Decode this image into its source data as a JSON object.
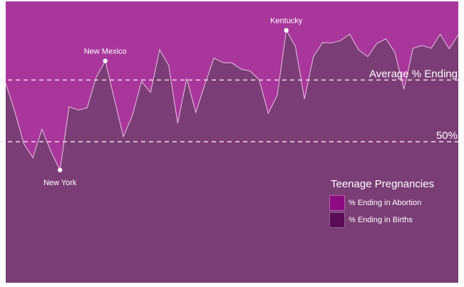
{
  "chart_data": {
    "type": "area",
    "title": "",
    "xlabel": "",
    "ylabel": "",
    "ylim": [
      0,
      1
    ],
    "grid": false,
    "legend_position": "bottom-right",
    "legend": {
      "title": "Teenage Pregnancies",
      "entries": [
        "% Ending in Abortion",
        "% Ending in Births"
      ]
    },
    "series": [
      {
        "name": "% Ending in Abortion",
        "color": "#a8369b",
        "values": [
          0.708,
          0.608,
          0.493,
          0.443,
          0.545,
          0.465,
          0.399,
          0.625,
          0.613,
          0.621,
          0.73,
          0.788,
          0.652,
          0.518,
          0.594,
          0.715,
          0.676,
          0.828,
          0.772,
          0.566,
          0.726,
          0.604,
          0.704,
          0.798,
          0.782,
          0.781,
          0.759,
          0.752,
          0.721,
          0.601,
          0.666,
          0.897,
          0.84,
          0.652,
          0.804,
          0.853,
          0.852,
          0.861,
          0.883,
          0.827,
          0.803,
          0.85,
          0.867,
          0.818,
          0.687,
          0.833,
          0.843,
          0.833,
          0.883,
          0.831,
          0.882
        ]
      },
      {
        "name": "% Ending in Births",
        "color": "#7b3d75",
        "values": [
          0.292,
          0.392,
          0.507,
          0.557,
          0.455,
          0.535,
          0.601,
          0.375,
          0.387,
          0.379,
          0.27,
          0.212,
          0.348,
          0.482,
          0.406,
          0.285,
          0.324,
          0.172,
          0.228,
          0.434,
          0.274,
          0.396,
          0.296,
          0.202,
          0.218,
          0.219,
          0.241,
          0.248,
          0.279,
          0.399,
          0.334,
          0.103,
          0.16,
          0.348,
          0.196,
          0.147,
          0.148,
          0.139,
          0.117,
          0.173,
          0.197,
          0.15,
          0.133,
          0.182,
          0.313,
          0.167,
          0.157,
          0.167,
          0.117,
          0.169,
          0.118
        ]
      }
    ],
    "reference_lines": [
      {
        "label": "Average % Ending",
        "value": 0.72
      },
      {
        "label": "50%",
        "value": 0.5
      }
    ],
    "annotations": [
      {
        "label": "New York",
        "index": 6
      },
      {
        "label": "New Mexico",
        "index": 11
      },
      {
        "label": "Kentucky",
        "index": 31
      }
    ]
  }
}
